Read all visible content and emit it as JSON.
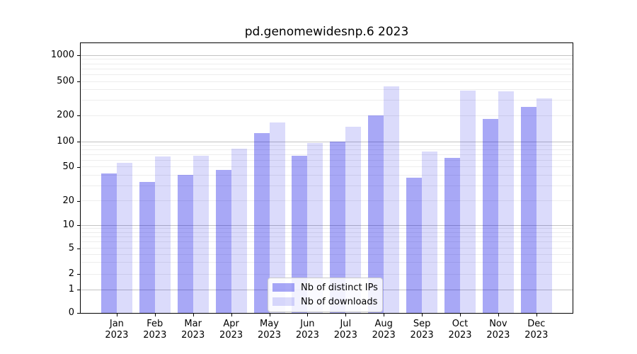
{
  "chart_data": {
    "type": "bar",
    "title": "pd.genomewidesnp.6 2023",
    "categories": [
      "Jan",
      "Feb",
      "Mar",
      "Apr",
      "May",
      "Jun",
      "Jul",
      "Aug",
      "Sep",
      "Oct",
      "Nov",
      "Dec"
    ],
    "x_tick_year_line": "2023",
    "series": [
      {
        "name": "Nb of distinct IPs",
        "color": "#0000e6",
        "alpha": 0.34,
        "values": [
          42,
          33,
          40,
          46,
          125,
          68,
          100,
          201,
          37,
          64,
          182,
          251
        ]
      },
      {
        "name": "Nb of downloads",
        "color": "#0000e6",
        "alpha": 0.14,
        "values": [
          56,
          67,
          68,
          82,
          166,
          97,
          148,
          440,
          76,
          389,
          381,
          317
        ]
      }
    ],
    "yscale": "symlog-like (log1p)",
    "ylim": [
      0,
      1500
    ],
    "yticks": [
      0,
      1,
      2,
      5,
      10,
      20,
      50,
      100,
      200,
      500,
      1000
    ],
    "major_gridlines": [
      1,
      10,
      100,
      1000
    ],
    "minor_gridlines": [
      2,
      3,
      4,
      5,
      6,
      7,
      8,
      9,
      20,
      30,
      40,
      50,
      60,
      70,
      80,
      90,
      200,
      300,
      400,
      500,
      600,
      700,
      800,
      900
    ],
    "grid": "both",
    "legend": {
      "position": "lower center",
      "items": [
        "Nb of distinct IPs",
        "Nb of downloads"
      ]
    }
  },
  "colors": {
    "bar_distinct_ips_on_white": "#a9a9f6",
    "bar_downloads_on_white": "#dbdbfb",
    "major_grid": "#c3c3c3",
    "minor_grid": "#ededed",
    "axis": "#000000",
    "legend_border": "#cccccc",
    "background": "#ffffff"
  }
}
